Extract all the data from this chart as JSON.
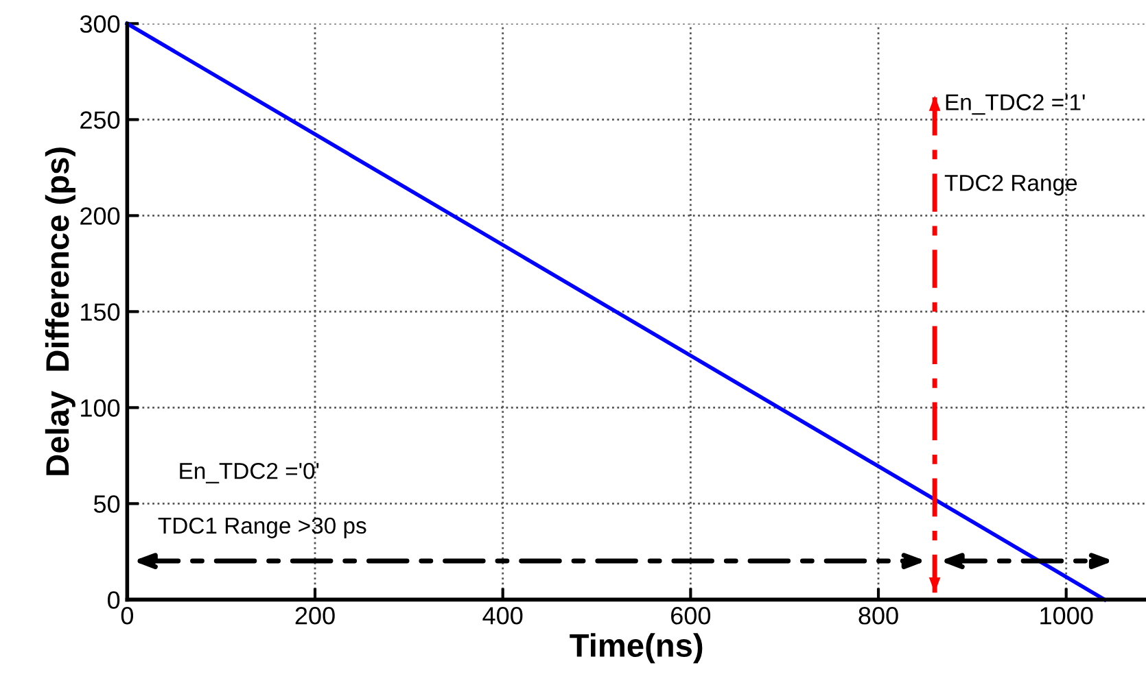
{
  "chart_data": {
    "type": "line",
    "xlabel": "Time(ns)",
    "ylabel": "Delay  Difference (ps)",
    "xlim": [
      0,
      1085
    ],
    "ylim": [
      0,
      300
    ],
    "xticks": [
      0,
      200,
      400,
      600,
      800,
      1000
    ],
    "yticks": [
      0,
      50,
      100,
      150,
      200,
      250,
      300
    ],
    "grid": true,
    "series": [
      {
        "x": [
          0,
          1041
        ],
        "values": [
          300,
          0
        ],
        "color": "#0000ff",
        "line_style": "solid"
      }
    ],
    "ref_lines": [
      {
        "axis": "x",
        "value": 860,
        "color": "#ff0000",
        "line_style": "dashed"
      }
    ],
    "annotations": [
      "En_TDC2 ='1'",
      "TDC2 Range",
      "En_TDC2 ='0'",
      "TDC1 Range >30 ps"
    ]
  }
}
